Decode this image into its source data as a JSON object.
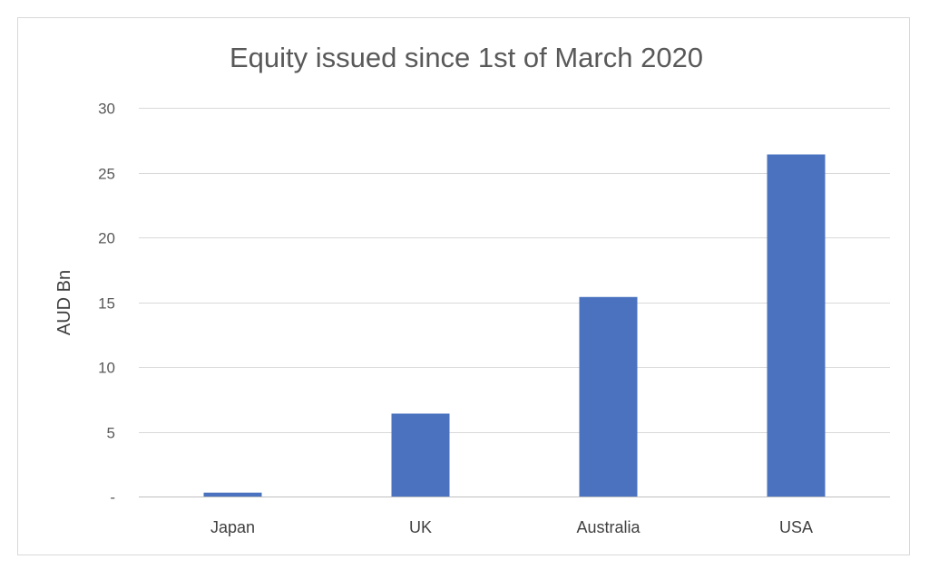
{
  "chart_data": {
    "type": "bar",
    "title": "Equity issued since 1st of March 2020",
    "xlabel": "",
    "ylabel": "AUD Bn",
    "categories": [
      "Japan",
      "UK",
      "Australia",
      "USA"
    ],
    "values": [
      0.3,
      6.4,
      15.4,
      26.4
    ],
    "ylim": [
      0,
      30
    ],
    "yticks": [
      {
        "value": 0,
        "label": "-"
      },
      {
        "value": 5,
        "label": "5"
      },
      {
        "value": 10,
        "label": "10"
      },
      {
        "value": 15,
        "label": "15"
      },
      {
        "value": 20,
        "label": "20"
      },
      {
        "value": 25,
        "label": "25"
      },
      {
        "value": 30,
        "label": "30"
      }
    ],
    "grid": true,
    "bar_color": "#4a72bf"
  }
}
